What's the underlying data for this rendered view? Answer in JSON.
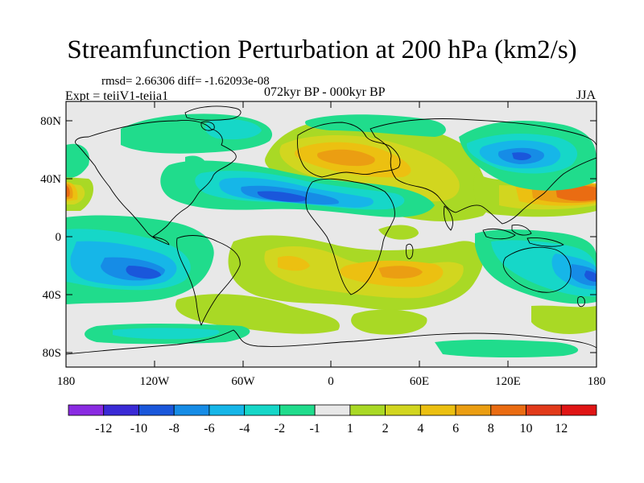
{
  "title": "Streamfunction Perturbation at 200 hPa (km2/s)",
  "stats": "rmsd= 2.66306 diff= -1.62093e-08",
  "expt": "Expt = teiiV1-teiia1",
  "period": "072kyr BP - 000kyr BP",
  "season": "JJA",
  "lat_labels": [
    "80N",
    "40N",
    "0",
    "40S",
    "80S"
  ],
  "lon_labels": [
    "180",
    "120W",
    "60W",
    "0",
    "60E",
    "120E",
    "180"
  ],
  "colorbar": {
    "labels": [
      "-12",
      "-10",
      "-8",
      "-6",
      "-4",
      "-2",
      "-1",
      "1",
      "2",
      "4",
      "6",
      "8",
      "10",
      "12"
    ],
    "colors": [
      "#8a2be2",
      "#3a2ad6",
      "#1a57db",
      "#168ce6",
      "#16b6e8",
      "#16d7c8",
      "#20dc8c",
      "#e8e8e8",
      "#a9d925",
      "#d2d61f",
      "#ecc011",
      "#eb9e12",
      "#ea6c12",
      "#e23a1a",
      "#e01515"
    ]
  }
}
